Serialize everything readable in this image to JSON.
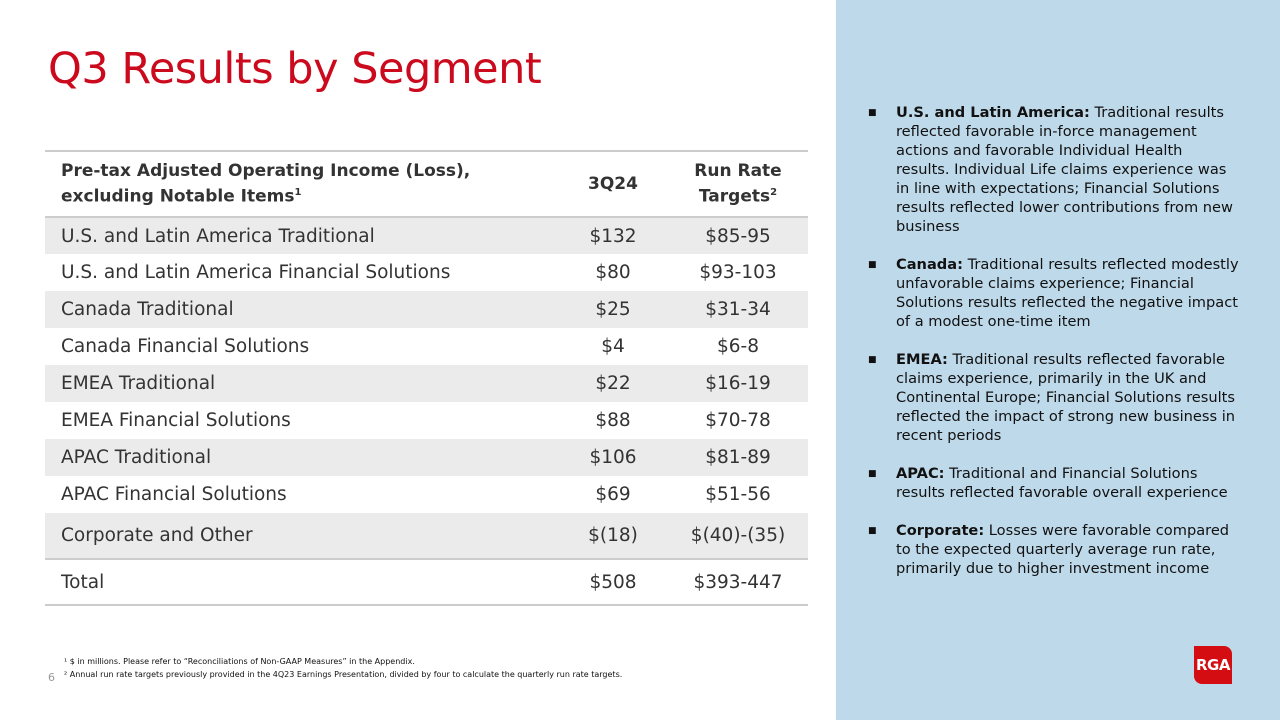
{
  "title": "Q3 Results by Segment",
  "table": {
    "headers": [
      "Pre-tax Adjusted Operating Income (Loss),",
      "excluding Notable Items",
      "1",
      "3Q24",
      "Run Rate",
      "Targets",
      "2"
    ],
    "rows": [
      [
        "U.S. and Latin America Traditional",
        "$132",
        "$85-95"
      ],
      [
        "U.S. and Latin America Financial Solutions",
        "$80",
        "$93-103"
      ],
      [
        "Canada Traditional",
        "$25",
        "$31-34"
      ],
      [
        "Canada Financial Solutions",
        "$4",
        "$6-8"
      ],
      [
        "EMEA Traditional",
        "$22",
        "$16-19"
      ],
      [
        "EMEA Financial Solutions",
        "$88",
        "$70-78"
      ],
      [
        "APAC Traditional",
        "$106",
        "$81-89"
      ],
      [
        "APAC Financial Solutions",
        "$69",
        "$51-56"
      ],
      [
        "Corporate and Other",
        "$(18)",
        "$(40)-(35)"
      ],
      [
        "Total",
        "$508",
        "$393-447"
      ]
    ]
  },
  "bullets": [
    {
      "head": "U.S. and Latin America:",
      "text": " Traditional results reflected favorable in-force management actions and favorable Individual Health results. Individual Life claims experience was in line with expectations; Financial Solutions results reflected lower contributions from new business"
    },
    {
      "head": "Canada:",
      "text": " Traditional results reflected modestly unfavorable claims experience; Financial Solutions results reflected the negative impact of a modest one-time item"
    },
    {
      "head": "EMEA:",
      "text": " Traditional results reflected favorable claims experience, primarily in the UK and Continental Europe; Financial Solutions results reflected the impact of strong new business in recent periods"
    },
    {
      "head": "APAC:",
      "text": " Traditional and Financial Solutions results reflected favorable overall experience"
    },
    {
      "head": "Corporate:",
      "text": " Losses were favorable compared to the expected quarterly average run rate, primarily due to higher investment income"
    }
  ],
  "footnotes": [
    "¹ $ in millions. Please refer to “Reconciliations of Non-GAAP Measures” in the Appendix.",
    "² Annual run rate targets previously provided in the 4Q23 Earnings Presentation, divided by four to calculate the quarterly run rate targets."
  ],
  "page_number": "6",
  "logo": "RGA",
  "colors": {
    "accent": "#cc0a1e",
    "panel": "#bed9ea",
    "logo": "#d40d12"
  }
}
